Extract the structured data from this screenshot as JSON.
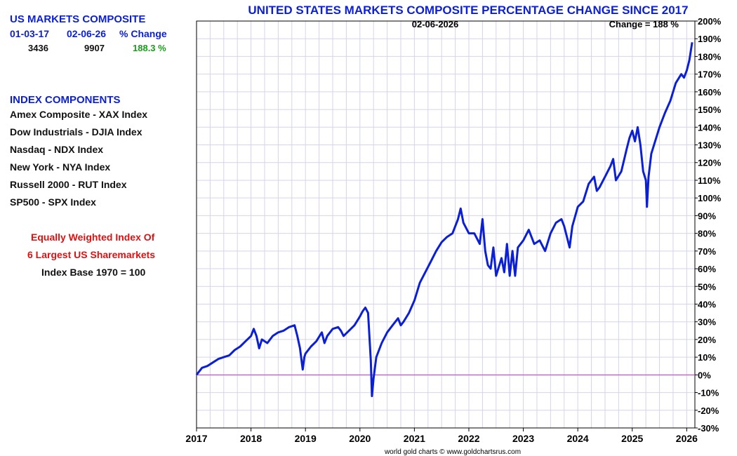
{
  "sidebar": {
    "summary": {
      "heading": "US MARKETS COMPOSITE",
      "col_start_label": "01-03-17",
      "col_end_label": "02-06-26",
      "col_change_label": "% Change",
      "start_value": "3436",
      "end_value": "9907",
      "change_value": "188.3 %"
    },
    "components": {
      "heading": "INDEX COMPONENTS",
      "items": [
        "Amex Composite - XAX Index",
        "Dow Industrials - DJIA Index",
        "Nasdaq - NDX Index",
        "New York - NYA Index",
        "Russell 2000 - RUT Index",
        "SP500 - SPX Index"
      ]
    },
    "notes": {
      "line1": "Equally Weighted Index Of",
      "line2": "6 Largest US Sharemarkets",
      "line3": "Index Base 1970 = 100"
    }
  },
  "footer": {
    "credit": "world gold charts © www.goldchartsrus.com"
  },
  "colors": {
    "series": "#0a1fd6",
    "baseline": "#cc33cc",
    "grid": "#d4d4ea",
    "title": "#0a1fd6"
  },
  "chart_data": {
    "type": "line",
    "title": "UNITED STATES MARKETS COMPOSITE PERCENTAGE CHANGE SINCE 2017",
    "date_label": "02-06-2026",
    "change_label": "Change = 188 %",
    "xlim": [
      2017.0,
      2026.15
    ],
    "ylim": [
      -30,
      200
    ],
    "x_ticks": [
      2017,
      2018,
      2019,
      2020,
      2021,
      2022,
      2023,
      2024,
      2025,
      2026
    ],
    "y_ticks": [
      -30,
      -20,
      -10,
      0,
      10,
      20,
      30,
      40,
      50,
      60,
      70,
      80,
      90,
      100,
      110,
      120,
      130,
      140,
      150,
      160,
      170,
      180,
      190,
      200
    ],
    "y_tick_suffix": "%",
    "grid": true,
    "baseline": 0,
    "series": [
      {
        "x": [
          2017.0,
          2017.1,
          2017.2,
          2017.3,
          2017.4,
          2017.5,
          2017.6,
          2017.7,
          2017.8,
          2017.9,
          2018.0,
          2018.05,
          2018.1,
          2018.15,
          2018.2,
          2018.3,
          2018.4,
          2018.5,
          2018.6,
          2018.7,
          2018.8,
          2018.85,
          2018.9,
          2018.95,
          2018.98,
          2019.0,
          2019.1,
          2019.2,
          2019.3,
          2019.35,
          2019.4,
          2019.5,
          2019.6,
          2019.65,
          2019.7,
          2019.8,
          2019.9,
          2020.0,
          2020.05,
          2020.1,
          2020.15,
          2020.2,
          2020.22,
          2020.25,
          2020.3,
          2020.4,
          2020.5,
          2020.6,
          2020.7,
          2020.75,
          2020.8,
          2020.9,
          2021.0,
          2021.1,
          2021.2,
          2021.3,
          2021.4,
          2021.5,
          2021.6,
          2021.7,
          2021.8,
          2021.85,
          2021.9,
          2022.0,
          2022.1,
          2022.2,
          2022.25,
          2022.3,
          2022.35,
          2022.4,
          2022.45,
          2022.5,
          2022.6,
          2022.65,
          2022.7,
          2022.75,
          2022.8,
          2022.85,
          2022.9,
          2023.0,
          2023.1,
          2023.2,
          2023.3,
          2023.4,
          2023.5,
          2023.6,
          2023.7,
          2023.75,
          2023.8,
          2023.85,
          2023.9,
          2024.0,
          2024.1,
          2024.2,
          2024.3,
          2024.35,
          2024.4,
          2024.5,
          2024.6,
          2024.65,
          2024.7,
          2024.8,
          2024.9,
          2024.95,
          2025.0,
          2025.05,
          2025.1,
          2025.15,
          2025.2,
          2025.25,
          2025.27,
          2025.3,
          2025.35,
          2025.4,
          2025.5,
          2025.6,
          2025.7,
          2025.8,
          2025.9,
          2025.95,
          2026.0,
          2026.05,
          2026.1
        ],
        "y": [
          0,
          4,
          5,
          7,
          9,
          10,
          11,
          14,
          16,
          19,
          22,
          26,
          22,
          15,
          20,
          18,
          22,
          24,
          25,
          27,
          28,
          22,
          15,
          3,
          10,
          12,
          16,
          19,
          24,
          18,
          22,
          26,
          27,
          25,
          22,
          25,
          28,
          33,
          36,
          38,
          35,
          8,
          -12,
          -2,
          10,
          18,
          24,
          28,
          32,
          28,
          30,
          35,
          42,
          52,
          58,
          64,
          70,
          75,
          78,
          80,
          88,
          94,
          86,
          80,
          80,
          74,
          88,
          70,
          62,
          60,
          72,
          56,
          66,
          58,
          74,
          56,
          70,
          56,
          72,
          76,
          82,
          74,
          76,
          70,
          80,
          86,
          88,
          84,
          78,
          72,
          84,
          95,
          98,
          108,
          112,
          104,
          106,
          112,
          118,
          122,
          110,
          115,
          128,
          134,
          138,
          132,
          140,
          130,
          115,
          110,
          95,
          112,
          125,
          130,
          140,
          148,
          155,
          165,
          170,
          168,
          172,
          178,
          188
        ]
      }
    ]
  }
}
